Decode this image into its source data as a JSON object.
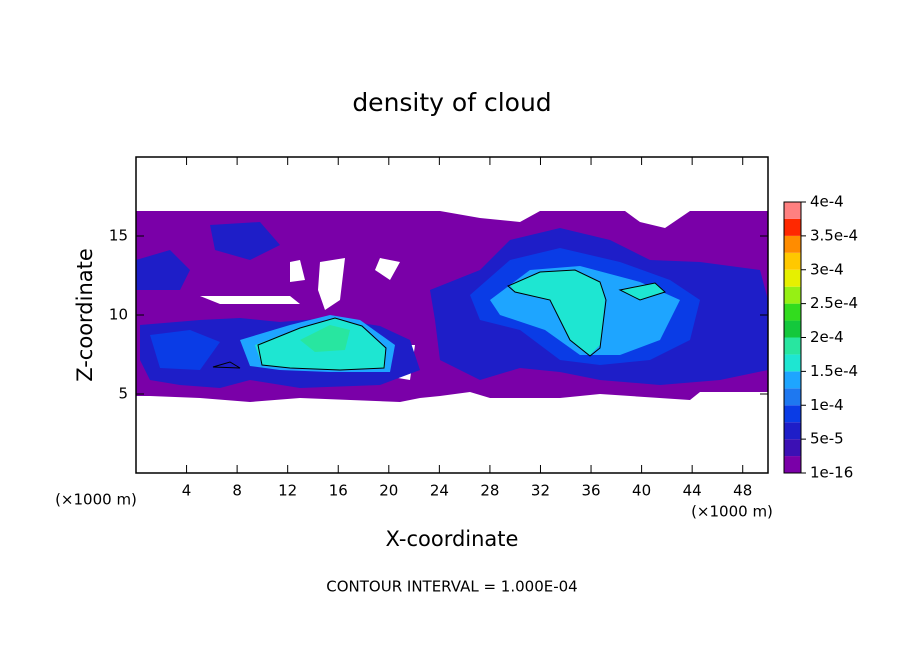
{
  "chart_data": {
    "type": "contour",
    "title": "density of cloud",
    "x_label": "X-coordinate",
    "y_label": "Z-coordinate",
    "x_unit_label": "(×1000 m)",
    "y_unit_label": "(×1000 m)",
    "footer": "CONTOUR INTERVAL = 1.000E-04",
    "xlim": [
      0,
      50
    ],
    "xticks": [
      4,
      8,
      12,
      16,
      20,
      24,
      28,
      32,
      36,
      40,
      44,
      48
    ],
    "ylim": [
      0,
      20
    ],
    "yticks": [
      5,
      10,
      15
    ],
    "colorbar": {
      "lim": [
        1e-16,
        0.0004
      ],
      "ticks": [
        {
          "value": 1e-16,
          "label": "1e-16"
        },
        {
          "value": 5e-05,
          "label": "5e-5"
        },
        {
          "value": 0.0001,
          "label": "1e-4"
        },
        {
          "value": 0.00015,
          "label": "1.5e-4"
        },
        {
          "value": 0.0002,
          "label": "2e-4"
        },
        {
          "value": 0.00025,
          "label": "2.5e-4"
        },
        {
          "value": 0.0003,
          "label": "3e-4"
        },
        {
          "value": 0.00035,
          "label": "3.5e-4"
        },
        {
          "value": 0.0004,
          "label": "4e-4"
        }
      ],
      "colors": [
        "#7a00a8",
        "#3c10b4",
        "#1e1ec8",
        "#0a3ce6",
        "#1e78f0",
        "#1ea5ff",
        "#1ee6d2",
        "#28e6a0",
        "#14c83c",
        "#32dc1e",
        "#96f014",
        "#e6f000",
        "#ffc800",
        "#ff8c00",
        "#ff2800",
        "#ff8080"
      ]
    }
  }
}
